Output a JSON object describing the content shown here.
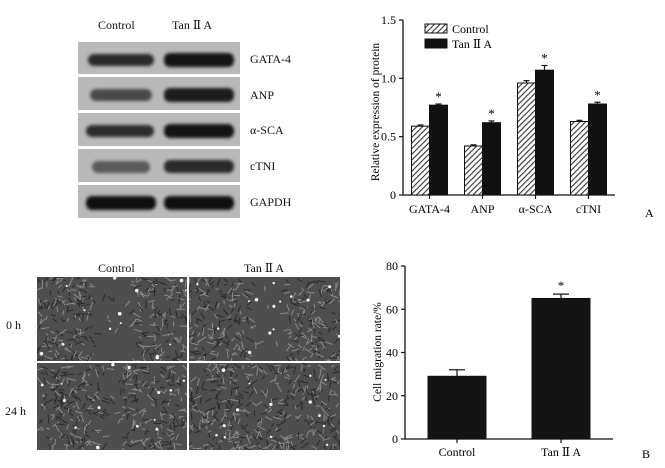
{
  "panel_a": {
    "blot": {
      "columns": [
        "Control",
        "Tan Ⅱ A"
      ],
      "rows": [
        "GATA-4",
        "ANP",
        "α-SCA",
        "cTNI",
        "GAPDH"
      ]
    },
    "letter": "A"
  },
  "panel_b": {
    "micrograph": {
      "columns": [
        "Control",
        "Tan Ⅱ A"
      ],
      "rows": [
        "0 h",
        "24 h"
      ]
    },
    "letter": "B"
  },
  "chart_data": [
    {
      "type": "bar",
      "categories": [
        "GATA-4",
        "ANP",
        "α-SCA",
        "cTNI"
      ],
      "series": [
        {
          "name": "Control",
          "values": [
            0.59,
            0.42,
            0.96,
            0.63
          ],
          "errors": [
            0.01,
            0.01,
            0.02,
            0.01
          ],
          "fill": "hatched"
        },
        {
          "name": "Tan Ⅱ A",
          "values": [
            0.77,
            0.62,
            1.07,
            0.78
          ],
          "errors": [
            0.01,
            0.015,
            0.04,
            0.015
          ],
          "fill": "#111111"
        }
      ],
      "significance": [
        false,
        true,
        false,
        true,
        false,
        true,
        false,
        true
      ],
      "significance_mark": "*",
      "ylabel": "Relative expression of protein",
      "ylim": [
        0,
        1.5
      ],
      "yticks": [
        "0",
        "0.5",
        "1.0",
        "1.5"
      ],
      "legend": "top-left"
    },
    {
      "type": "bar",
      "categories": [
        "Control",
        "Tan Ⅱ A"
      ],
      "values": [
        29,
        65
      ],
      "errors": [
        3,
        2
      ],
      "significance": [
        false,
        true
      ],
      "significance_mark": "*",
      "ylabel": "Cell migration rate/%",
      "ylim": [
        0,
        80
      ],
      "yticks": [
        "0",
        "20",
        "40",
        "60",
        "80"
      ]
    }
  ]
}
